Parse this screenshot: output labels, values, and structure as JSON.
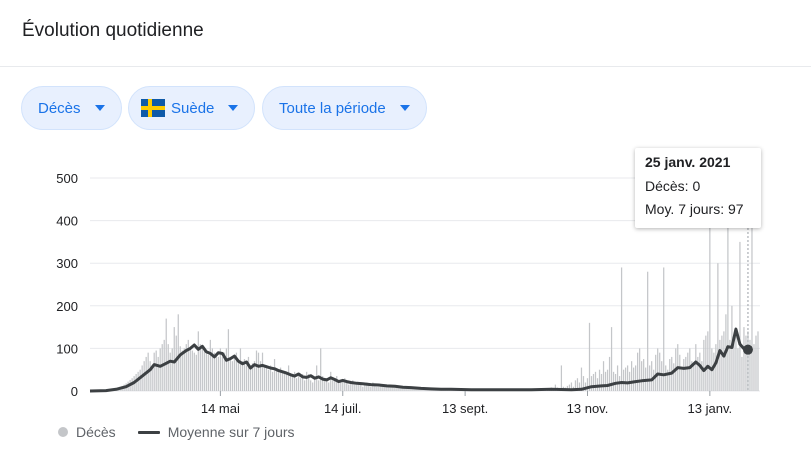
{
  "header": {
    "title": "Évolution quotidienne"
  },
  "filters": {
    "metric": "Décès",
    "country": "Suède",
    "period": "Toute la période"
  },
  "tooltip": {
    "date": "25 janv. 2021",
    "deaths": "Décès: 0",
    "avg": "Moy. 7 jours: 97"
  },
  "legend": {
    "bars": "Décès",
    "line": "Moyenne sur 7 jours"
  },
  "colors": {
    "bars": "#c4c6c9",
    "line": "#3c4043",
    "accent": "#1a73e8"
  },
  "chart_data": {
    "type": "bar",
    "x_range": [
      "2020-03-10",
      "2021-01-25"
    ],
    "ylim": [
      0,
      500
    ],
    "yticks": [
      "0",
      "100",
      "200",
      "300",
      "400",
      "500"
    ],
    "xticks": [
      "14 mai",
      "14 juil.",
      "13 sept.",
      "13 nov.",
      "13 janv."
    ],
    "xtick_days": [
      65,
      126,
      187,
      248,
      309
    ],
    "grid": true,
    "series": [
      {
        "name": "Décès",
        "type": "bar",
        "values": [
          0,
          0,
          0,
          0,
          0,
          1,
          1,
          1,
          2,
          2,
          3,
          4,
          5,
          6,
          8,
          10,
          12,
          15,
          18,
          22,
          26,
          30,
          35,
          40,
          45,
          50,
          60,
          70,
          80,
          90,
          70,
          60,
          90,
          95,
          80,
          100,
          110,
          120,
          170,
          110,
          90,
          100,
          150,
          130,
          180,
          105,
          95,
          100,
          110,
          120,
          100,
          95,
          90,
          85,
          140,
          110,
          100,
          95,
          90,
          85,
          120,
          100,
          90,
          85,
          80,
          100,
          80,
          90,
          100,
          145,
          75,
          70,
          80,
          90,
          70,
          100,
          70,
          75,
          60,
          80,
          55,
          65,
          70,
          95,
          90,
          70,
          90,
          60,
          55,
          50,
          60,
          45,
          75,
          50,
          50,
          55,
          45,
          40,
          45,
          60,
          40,
          35,
          45,
          30,
          35,
          30,
          40,
          25,
          45,
          40,
          25,
          20,
          30,
          60,
          25,
          100,
          35,
          25,
          30,
          20,
          45,
          25,
          30,
          35,
          25,
          20,
          25,
          30,
          20,
          15,
          20,
          25,
          15,
          15,
          20,
          15,
          10,
          15,
          20,
          15,
          10,
          20,
          15,
          10,
          10,
          15,
          15,
          10,
          10,
          12,
          15,
          10,
          8,
          10,
          12,
          8,
          10,
          8,
          6,
          8,
          10,
          6,
          8,
          5,
          6,
          8,
          5,
          6,
          5,
          4,
          6,
          5,
          4,
          5,
          4,
          6,
          3,
          5,
          4,
          3,
          4,
          5,
          3,
          4,
          3,
          4,
          2,
          3,
          4,
          3,
          2,
          3,
          3,
          2,
          4,
          3,
          2,
          3,
          2,
          3,
          2,
          3,
          2,
          4,
          3,
          2,
          3,
          4,
          2,
          3,
          2,
          3,
          4,
          3,
          2,
          4,
          3,
          5,
          2,
          4,
          3,
          5,
          4,
          6,
          3,
          5,
          4,
          6,
          5,
          4,
          8,
          5,
          15,
          8,
          6,
          60,
          10,
          8,
          12,
          15,
          20,
          10,
          25,
          30,
          20,
          55,
          35,
          20,
          30,
          160,
          35,
          40,
          45,
          30,
          50,
          40,
          70,
          45,
          50,
          80,
          150,
          45,
          40,
          60,
          35,
          290,
          50,
          55,
          60,
          45,
          70,
          55,
          60,
          90,
          100,
          70,
          75,
          55,
          280,
          60,
          70,
          50,
          85,
          100,
          90,
          70,
          290,
          60,
          50,
          75,
          80,
          65,
          100,
          110,
          85,
          50,
          75,
          80,
          90,
          100,
          70,
          60,
          110,
          80,
          90,
          70,
          120,
          130,
          140,
          400,
          100,
          90,
          110,
          300,
          120,
          130,
          140,
          180,
          430,
          120,
          200,
          120,
          150,
          100,
          350,
          80,
          150,
          130,
          140,
          120,
          400,
          110,
          130,
          140,
          0
        ]
      },
      {
        "name": "Moyenne sur 7 jours",
        "type": "line",
        "points": [
          [
            0,
            0
          ],
          [
            8,
            1
          ],
          [
            13,
            4
          ],
          [
            18,
            10
          ],
          [
            22,
            20
          ],
          [
            26,
            35
          ],
          [
            30,
            50
          ],
          [
            32,
            62
          ],
          [
            35,
            58
          ],
          [
            38,
            65
          ],
          [
            40,
            70
          ],
          [
            42,
            68
          ],
          [
            45,
            85
          ],
          [
            48,
            95
          ],
          [
            50,
            100
          ],
          [
            52,
            108
          ],
          [
            54,
            98
          ],
          [
            56,
            105
          ],
          [
            58,
            92
          ],
          [
            60,
            88
          ],
          [
            62,
            80
          ],
          [
            64,
            90
          ],
          [
            66,
            88
          ],
          [
            68,
            72
          ],
          [
            70,
            76
          ],
          [
            72,
            82
          ],
          [
            74,
            70
          ],
          [
            76,
            64
          ],
          [
            78,
            68
          ],
          [
            80,
            54
          ],
          [
            82,
            62
          ],
          [
            84,
            58
          ],
          [
            86,
            60
          ],
          [
            88,
            57
          ],
          [
            90,
            54
          ],
          [
            92,
            52
          ],
          [
            94,
            48
          ],
          [
            96,
            45
          ],
          [
            98,
            42
          ],
          [
            100,
            38
          ],
          [
            102,
            35
          ],
          [
            104,
            40
          ],
          [
            106,
            33
          ],
          [
            108,
            32
          ],
          [
            110,
            36
          ],
          [
            112,
            30
          ],
          [
            114,
            33
          ],
          [
            116,
            28
          ],
          [
            118,
            26
          ],
          [
            120,
            31
          ],
          [
            122,
            27
          ],
          [
            124,
            22
          ],
          [
            126,
            25
          ],
          [
            128,
            22
          ],
          [
            130,
            20
          ],
          [
            133,
            18
          ],
          [
            136,
            17
          ],
          [
            140,
            15
          ],
          [
            144,
            14
          ],
          [
            148,
            12
          ],
          [
            152,
            11
          ],
          [
            156,
            9
          ],
          [
            160,
            8
          ],
          [
            165,
            6
          ],
          [
            170,
            5
          ],
          [
            175,
            4
          ],
          [
            180,
            4
          ],
          [
            190,
            3
          ],
          [
            200,
            3
          ],
          [
            210,
            3
          ],
          [
            220,
            3
          ],
          [
            230,
            4
          ],
          [
            240,
            3
          ],
          [
            245,
            4
          ],
          [
            250,
            10
          ],
          [
            255,
            12
          ],
          [
            258,
            13
          ],
          [
            262,
            18
          ],
          [
            265,
            20
          ],
          [
            268,
            19
          ],
          [
            272,
            22
          ],
          [
            275,
            24
          ],
          [
            280,
            26
          ],
          [
            283,
            40
          ],
          [
            286,
            38
          ],
          [
            290,
            42
          ],
          [
            293,
            55
          ],
          [
            296,
            53
          ],
          [
            299,
            55
          ],
          [
            302,
            68
          ],
          [
            304,
            60
          ],
          [
            306,
            48
          ],
          [
            308,
            58
          ],
          [
            310,
            50
          ],
          [
            312,
            66
          ],
          [
            314,
            95
          ],
          [
            316,
            82
          ],
          [
            318,
            104
          ],
          [
            320,
            102
          ],
          [
            322,
            145
          ],
          [
            324,
            110
          ],
          [
            326,
            99
          ],
          [
            328,
            97
          ]
        ]
      }
    ],
    "highlight": {
      "day": 328,
      "value": 97
    }
  }
}
